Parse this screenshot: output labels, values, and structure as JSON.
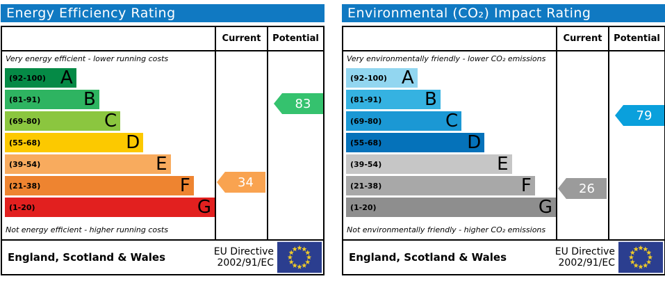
{
  "chart_data": [
    {
      "type": "bar",
      "panel": "energy-efficiency",
      "title": "Energy Efficiency Rating",
      "title_bg": "#1079c2",
      "columns": {
        "current_label": "Current",
        "potential_label": "Potential"
      },
      "caption_top": "Very energy efficient - lower running costs",
      "caption_bottom": "Not energy efficient - higher running costs",
      "bands": [
        {
          "letter": "A",
          "label": "(92-100)",
          "min": 92,
          "max": 100,
          "color": "#058a46",
          "width_pct": 34
        },
        {
          "letter": "B",
          "label": "(81-91)",
          "min": 81,
          "max": 91,
          "color": "#2eb461",
          "width_pct": 45
        },
        {
          "letter": "C",
          "label": "(69-80)",
          "min": 69,
          "max": 80,
          "color": "#8bc63f",
          "width_pct": 55
        },
        {
          "letter": "D",
          "label": "(55-68)",
          "min": 55,
          "max": 68,
          "color": "#fcc900",
          "width_pct": 66
        },
        {
          "letter": "E",
          "label": "(39-54)",
          "min": 39,
          "max": 54,
          "color": "#f8ab5e",
          "width_pct": 79
        },
        {
          "letter": "F",
          "label": "(21-38)",
          "min": 21,
          "max": 38,
          "color": "#ee8430",
          "width_pct": 90
        },
        {
          "letter": "G",
          "label": "(1-20)",
          "min": 1,
          "max": 20,
          "color": "#e2201f",
          "width_pct": 100
        }
      ],
      "current": {
        "value": 34,
        "band": "F",
        "color": "#f9a350"
      },
      "potential": {
        "value": 83,
        "band": "B",
        "color": "#35c26e"
      },
      "footer": {
        "region": "England, Scotland & Wales",
        "directive_line1": "EU Directive",
        "directive_line2": "2002/91/EC",
        "flag_field": "#2b3e8f",
        "flag_stars": "#edc92a"
      }
    },
    {
      "type": "bar",
      "panel": "environmental-co2-impact",
      "title": "Environmental (CO₂) Impact Rating",
      "title_bg": "#1079c2",
      "columns": {
        "current_label": "Current",
        "potential_label": "Potential"
      },
      "caption_top": "Very environmentally friendly - lower CO₂ emissions",
      "caption_bottom": "Not environmentally friendly - higher CO₂ emissions",
      "bands": [
        {
          "letter": "A",
          "label": "(92-100)",
          "min": 92,
          "max": 100,
          "color": "#92d6f0",
          "width_pct": 34
        },
        {
          "letter": "B",
          "label": "(81-91)",
          "min": 81,
          "max": 91,
          "color": "#35b2e1",
          "width_pct": 45
        },
        {
          "letter": "C",
          "label": "(69-80)",
          "min": 69,
          "max": 80,
          "color": "#1b98d4",
          "width_pct": 55
        },
        {
          "letter": "D",
          "label": "(55-68)",
          "min": 55,
          "max": 68,
          "color": "#0572ba",
          "width_pct": 66
        },
        {
          "letter": "E",
          "label": "(39-54)",
          "min": 39,
          "max": 54,
          "color": "#c6c6c6",
          "width_pct": 79
        },
        {
          "letter": "F",
          "label": "(21-38)",
          "min": 21,
          "max": 38,
          "color": "#a8a8a8",
          "width_pct": 90
        },
        {
          "letter": "G",
          "label": "(1-20)",
          "min": 1,
          "max": 20,
          "color": "#8e8e8e",
          "width_pct": 100
        }
      ],
      "current": {
        "value": 26,
        "band": "F",
        "color": "#9b9b9b"
      },
      "potential": {
        "value": 79,
        "band": "C",
        "color": "#0aa0dc"
      },
      "footer": {
        "region": "England, Scotland & Wales",
        "directive_line1": "EU Directive",
        "directive_line2": "2002/91/EC",
        "flag_field": "#2b3e8f",
        "flag_stars": "#edc92a"
      }
    }
  ]
}
